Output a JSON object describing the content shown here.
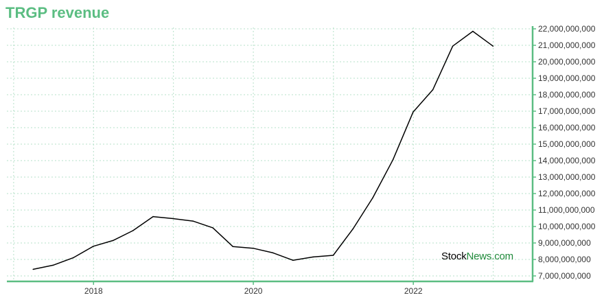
{
  "chart_data": {
    "type": "line",
    "title": "TRGP revenue",
    "xlabel": "",
    "ylabel": "",
    "x_ticks": [
      "2018",
      "2020",
      "2022"
    ],
    "y_ticks": [
      "7,000,000,000",
      "8,000,000,000",
      "9,000,000,000",
      "10,000,000,000",
      "11,000,000,000",
      "12,000,000,000",
      "13,000,000,000",
      "14,000,000,000",
      "15,000,000,000",
      "16,000,000,000",
      "17,000,000,000",
      "18,000,000,000",
      "19,000,000,000",
      "20,000,000,000",
      "21,000,000,000",
      "22,000,000,000"
    ],
    "ylim": [
      7000000000,
      22000000000
    ],
    "xlim": [
      "2016-12-01",
      "2023-06-30"
    ],
    "grid": true,
    "y_axis_side": "right",
    "series": [
      {
        "color": "#000000",
        "points": [
          {
            "x": "2017-03-31",
            "y": 7400000000
          },
          {
            "x": "2017-06-30",
            "y": 7650000000
          },
          {
            "x": "2017-09-30",
            "y": 8100000000
          },
          {
            "x": "2017-12-31",
            "y": 8800000000
          },
          {
            "x": "2018-03-31",
            "y": 9150000000
          },
          {
            "x": "2018-06-30",
            "y": 9750000000
          },
          {
            "x": "2018-09-30",
            "y": 10600000000
          },
          {
            "x": "2018-12-31",
            "y": 10480000000
          },
          {
            "x": "2019-03-31",
            "y": 10330000000
          },
          {
            "x": "2019-06-30",
            "y": 9920000000
          },
          {
            "x": "2019-09-30",
            "y": 8780000000
          },
          {
            "x": "2019-12-31",
            "y": 8680000000
          },
          {
            "x": "2020-03-31",
            "y": 8400000000
          },
          {
            "x": "2020-06-30",
            "y": 7950000000
          },
          {
            "x": "2020-09-30",
            "y": 8150000000
          },
          {
            "x": "2020-12-31",
            "y": 8250000000
          },
          {
            "x": "2021-03-31",
            "y": 9850000000
          },
          {
            "x": "2021-06-30",
            "y": 11750000000
          },
          {
            "x": "2021-09-30",
            "y": 14050000000
          },
          {
            "x": "2021-12-31",
            "y": 16950000000
          },
          {
            "x": "2022-03-31",
            "y": 18300000000
          },
          {
            "x": "2022-06-30",
            "y": 20950000000
          },
          {
            "x": "2022-09-30",
            "y": 21850000000
          },
          {
            "x": "2022-12-31",
            "y": 20950000000
          }
        ]
      }
    ]
  },
  "watermark": {
    "part1": "Stock",
    "part2": "News.com"
  },
  "colors": {
    "accent": "#5bbd82",
    "grid": "#b5e0c8",
    "line": "#000000"
  }
}
